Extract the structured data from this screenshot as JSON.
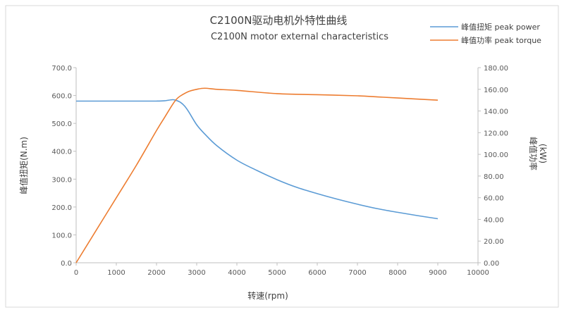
{
  "chart_data": {
    "type": "line",
    "title": "C2100N驱动电机外特性曲线",
    "subtitle": "C2100N motor  external characteristics",
    "xlabel": "转速(rpm)",
    "ylabel_left": "峰值扭矩(N.m)",
    "ylabel_right_line1": "峰值功率",
    "ylabel_right_line2": "(kW)",
    "xlim": [
      0,
      10000
    ],
    "ylim_left": [
      0,
      700
    ],
    "ylim_right": [
      0,
      180
    ],
    "x_ticks": [
      "0",
      "1000",
      "2000",
      "3000",
      "4000",
      "5000",
      "6000",
      "7000",
      "8000",
      "9000",
      "10000"
    ],
    "y_left_ticks": [
      "0.0",
      "100.0",
      "200.0",
      "300.0",
      "400.0",
      "500.0",
      "600.0",
      "700.0"
    ],
    "y_right_ticks": [
      "0.00",
      "20.00",
      "40.00",
      "60.00",
      "80.00",
      "100.00",
      "120.00",
      "140.00",
      "160.00",
      "180.00"
    ],
    "grid": false,
    "legend_position": "top-right",
    "series": [
      {
        "name": "峰值扭矩  peak power",
        "axis": "left",
        "color": "#5b9bd5",
        "x": [
          0,
          500,
          1000,
          1500,
          2000,
          2200,
          2400,
          2500,
          2600,
          2700,
          2800,
          3000,
          3200,
          3500,
          4000,
          4500,
          5000,
          5500,
          6000,
          6500,
          7000,
          7500,
          8000,
          8500,
          9000
        ],
        "values": [
          580,
          580,
          580,
          580,
          580,
          581,
          585,
          582,
          575,
          562,
          542,
          495,
          462,
          420,
          368,
          331,
          298,
          270,
          248,
          228,
          210,
          194,
          181,
          169,
          158
        ]
      },
      {
        "name": "峰值功率  peak torque",
        "axis": "right",
        "color": "#ed7d31",
        "x": [
          0,
          500,
          1000,
          1500,
          2000,
          2200,
          2400,
          2500,
          2600,
          2800,
          3000,
          3200,
          3500,
          4000,
          5000,
          6000,
          7000,
          7500,
          8000,
          9000
        ],
        "values": [
          0,
          30,
          60,
          90,
          122,
          134,
          146,
          151,
          154,
          158,
          160,
          161,
          160,
          159,
          156,
          155,
          154,
          153,
          152,
          150
        ]
      }
    ]
  }
}
